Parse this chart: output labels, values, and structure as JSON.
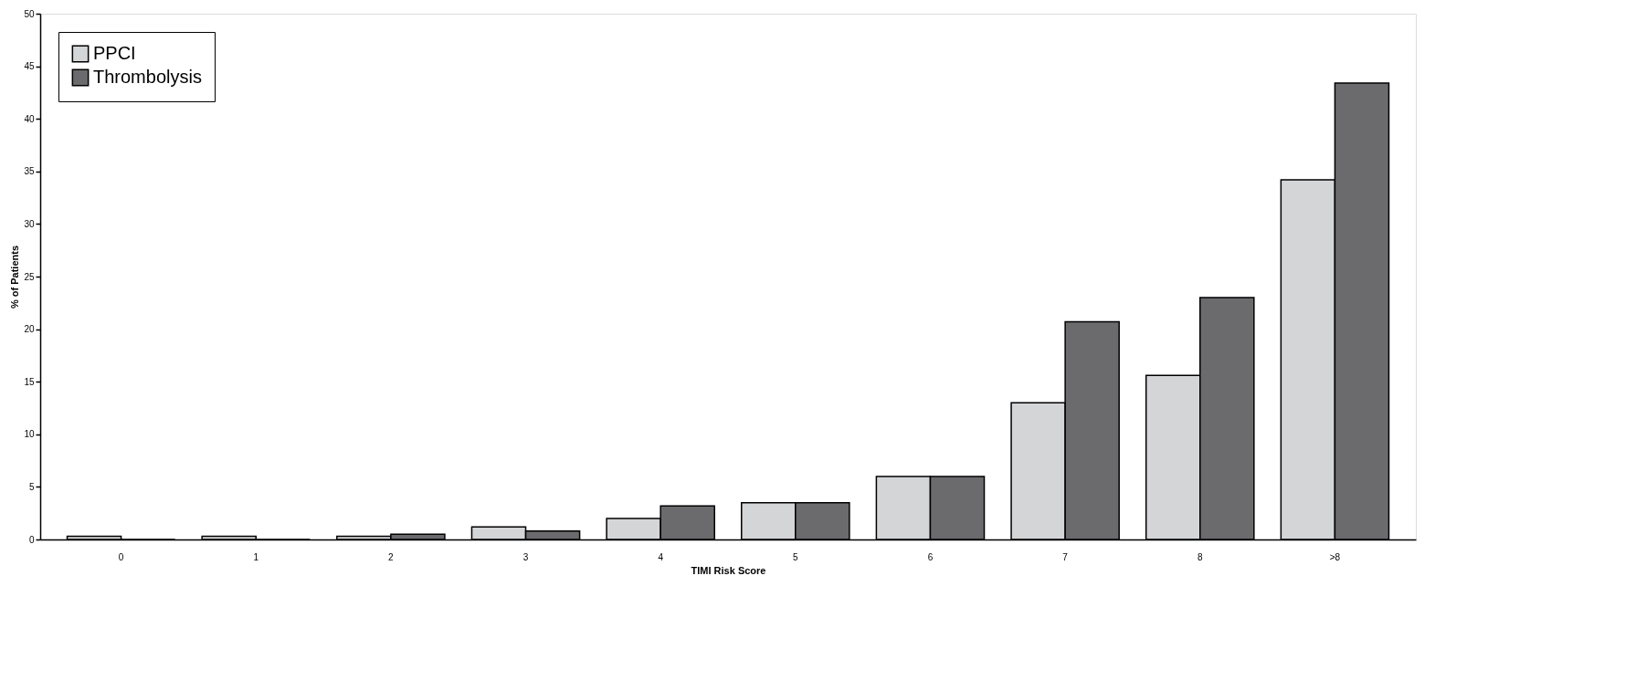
{
  "chart_data": {
    "type": "bar",
    "xlabel": "TIMI Risk Score",
    "ylabel": "% of Patients",
    "categories": [
      "0",
      "1",
      "2",
      "3",
      "4",
      "5",
      "6",
      "7",
      "8",
      ">8"
    ],
    "series": [
      {
        "name": "PPCI",
        "color": "#d4d5d7",
        "values": [
          0.3,
          0.3,
          0.3,
          1.2,
          2.0,
          3.5,
          6.0,
          13.0,
          15.6,
          34.2
        ]
      },
      {
        "name": "Thrombolysis",
        "color": "#6b6b6e",
        "values": [
          0,
          0,
          0.5,
          0.8,
          3.2,
          3.5,
          6.0,
          20.7,
          23.0,
          43.4
        ]
      }
    ],
    "ylim": [
      0,
      50
    ],
    "yticks": [
      0,
      5,
      10,
      15,
      20,
      25,
      30,
      35,
      40,
      45,
      50
    ],
    "grid": false,
    "legend": "top left"
  }
}
